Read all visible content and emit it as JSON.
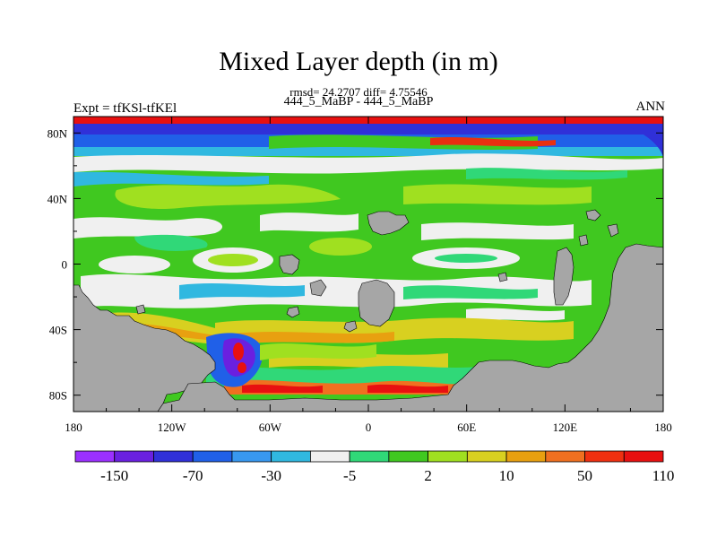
{
  "title": "Mixed Layer depth (in m)",
  "stats_text": "rmsd= 24.2707 diff= 4.75546",
  "subtitle": "444_5_MaBP - 444_5_MaBP",
  "left_label": "Expt = tfKSl-tfKEl",
  "right_label": "ANN",
  "map": {
    "lon_ticks": [
      "180",
      "120W",
      "60W",
      "0",
      "60E",
      "120E",
      "180"
    ],
    "lat_ticks": [
      "80N",
      "40N",
      "0",
      "40S",
      "80S"
    ]
  },
  "colorbar": {
    "labels": [
      "-150",
      "-70",
      "-30",
      "-5",
      "2",
      "10",
      "50",
      "110"
    ],
    "colors": [
      "#9b30ff",
      "#6a20e0",
      "#3030d8",
      "#2060e8",
      "#3898f0",
      "#30b8e0",
      "#f0f0f0",
      "#30d878",
      "#40c820",
      "#a0e020",
      "#d8d020",
      "#e8a010",
      "#f07020",
      "#f03010",
      "#e81010"
    ]
  },
  "colors": {
    "land": "#a6a6a6",
    "background": "#ffffff"
  }
}
